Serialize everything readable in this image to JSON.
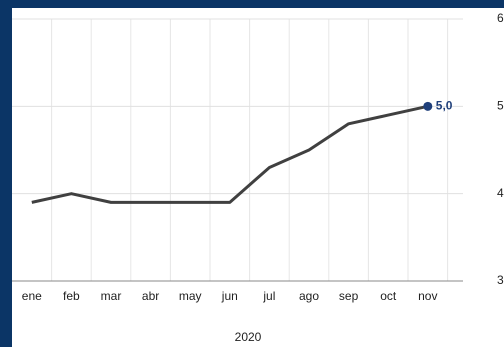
{
  "chart_data": {
    "type": "line",
    "categories": [
      "ene",
      "feb",
      "mar",
      "abr",
      "may",
      "jun",
      "jul",
      "ago",
      "sep",
      "oct",
      "nov"
    ],
    "x_label": "2020",
    "series": [
      {
        "color": "#404040",
        "marker_color": "#1f3f7a",
        "values": [
          3.9,
          4.0,
          3.9,
          3.9,
          3.9,
          3.9,
          4.3,
          4.5,
          4.8,
          4.9,
          5.0
        ],
        "value_labels": [
          null,
          null,
          null,
          null,
          null,
          null,
          null,
          null,
          null,
          null,
          "5,0"
        ]
      }
    ],
    "ylim": [
      3,
      6
    ],
    "yticks": [
      3,
      4,
      5,
      6
    ],
    "grid": true
  }
}
